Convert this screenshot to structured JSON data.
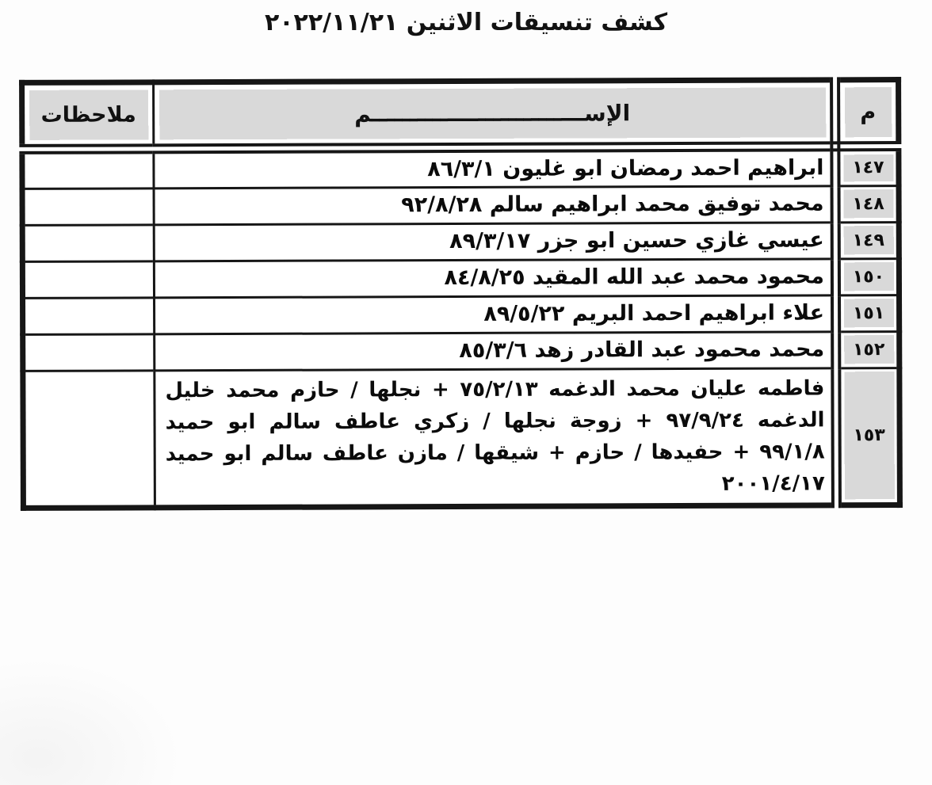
{
  "page": {
    "title": "كشف تنسيقات الاثنين ٢٠٢٢/١١/٢١"
  },
  "table": {
    "headers": {
      "number": "م",
      "name": "الإســــــــــــــــــــــــــــم",
      "notes": "ملاحظات"
    },
    "rows": [
      {
        "number": "١٤٧",
        "name": "ابراهيم احمد رمضان ابو غليون ٨٦/٣/١",
        "notes": ""
      },
      {
        "number": "١٤٨",
        "name": "محمد توفيق محمد ابراهيم سالم ٩٢/٨/٢٨",
        "notes": ""
      },
      {
        "number": "١٤٩",
        "name": "عيسي غازي حسين ابو جزر ٨٩/٣/١٧",
        "notes": ""
      },
      {
        "number": "١٥٠",
        "name": "محمود محمد عبد الله المقيد ٨٤/٨/٢٥",
        "notes": ""
      },
      {
        "number": "١٥١",
        "name": "علاء ابراهيم احمد البريم ٨٩/٥/٢٢",
        "notes": ""
      },
      {
        "number": "١٥٢",
        "name": "محمد محمود عبد القادر زهد ٨٥/٣/٦",
        "notes": ""
      },
      {
        "number": "١٥٣",
        "name": "فاطمه عليان محمد الدغمه ٧٥/٢/١٣ + نجلها / حازم محمد خليل الدغمه ٩٧/٩/٢٤ + زوجة نجلها / زكري عاطف سالم ابو حميد ٩٩/١/٨ + حفيدها / حازم + شيقها / مازن عاطف سالم ابو حميد ٢٠٠١/٤/١٧",
        "notes": ""
      }
    ]
  },
  "colors": {
    "header_bg": "#d9d9d9",
    "number_col_bg": "#d9d9d9",
    "border": "#161616",
    "text": "#0d0d0d",
    "page_bg": "#fdfdfd"
  }
}
